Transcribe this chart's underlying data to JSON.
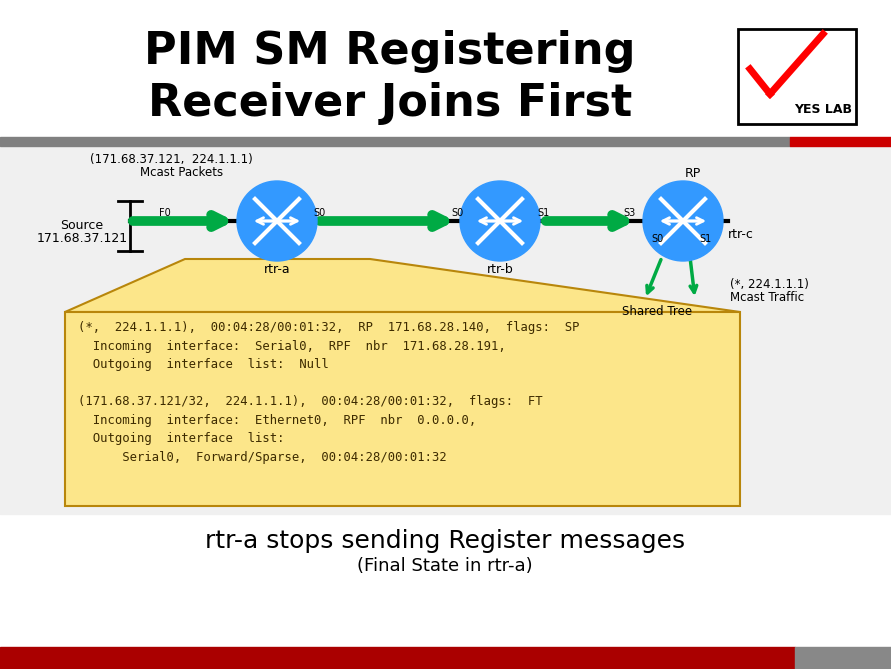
{
  "title_line1": "PIM SM Registering",
  "title_line2": "Receiver Joins First",
  "title_fontsize": 32,
  "bg_color": "#ffffff",
  "router_color": "#3399ff",
  "router_labels": [
    "rtr-a",
    "rtr-b",
    "rtr-c"
  ],
  "callout_bg": "#fce68a",
  "callout_border": "#b8860b",
  "callout_line1": "(*,  224.1.1.1),  00:04:28/00:01:32,  RP  171.68.28.140,  flags:  SP",
  "callout_line2": "  Incoming  interface:  Serial0,  RPF  nbr  171.68.28.191,",
  "callout_line3": "  Outgoing  interface  list:  Null",
  "callout_line4": "",
  "callout_line5": "(171.68.37.121/32,  224.1.1.1),  00:04:28/00:01:32,  flags:  FT",
  "callout_line6": "  Incoming  interface:  Ethernet0,  RPF  nbr  0.0.0.0,",
  "callout_line7": "  Outgoing  interface  list:",
  "callout_line8": "      Serial0,  Forward/Sparse,  00:04:28/00:01:32",
  "footer_text1": "rtr-a stops sending Register messages",
  "footer_text2": "(Final State in rtr-a)",
  "footer_fontsize": 18,
  "bottom_red": "#aa0000",
  "bottom_gray": "#888888",
  "gray_bar": "#808080",
  "red_bar": "#cc0000",
  "diagram_bg": "#f0f0f0",
  "green_arrow": "#00aa44",
  "mcast_label1": "(171.68.37.121,  224.1.1.1)",
  "mcast_label2": "Mcast Packets",
  "source_label1": "Source",
  "source_label2": "171.68.37.121",
  "rp_label": "RP",
  "shared_tree_label": "Shared Tree",
  "mcast_traffic1": "(*, 224.1.1.1)",
  "mcast_traffic2": "Mcast Traffic",
  "iface_labels": [
    "F0",
    "S0",
    "S0",
    "S1",
    "S3",
    "S0",
    "S1"
  ]
}
